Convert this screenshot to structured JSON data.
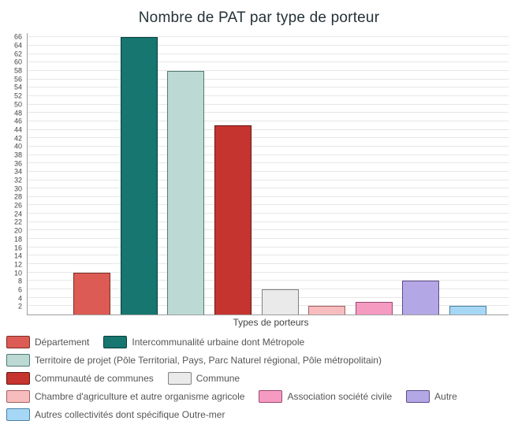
{
  "title": "Nombre de PAT par type de porteur",
  "chart_data": {
    "type": "bar",
    "title": "Nombre de PAT par type de porteur",
    "xlabel": "Types de porteurs",
    "ylabel": "",
    "ylim": [
      0,
      67
    ],
    "grid": true,
    "legend_position": "bottom",
    "yticks": [
      2,
      4,
      6,
      8,
      10,
      12,
      14,
      16,
      18,
      20,
      22,
      24,
      26,
      28,
      30,
      32,
      34,
      36,
      38,
      40,
      42,
      44,
      46,
      48,
      50,
      52,
      54,
      56,
      58,
      60,
      62,
      64,
      66
    ],
    "categories": [
      "Département",
      "Intercommunalité urbaine dont Métropole",
      "Territoire de projet (Pôle Territorial, Pays, Parc Naturel régional, Pôle métropolitain)",
      "Communauté de communes",
      "Commune",
      "Chambre d'agriculture et autre organisme agricole",
      "Association société civile",
      "Autre",
      "Autres collectivités dont spécifique Outre-mer"
    ],
    "values": [
      10,
      66,
      58,
      45,
      6,
      2,
      3,
      8,
      2
    ],
    "colors": [
      "#dc5b54",
      "#17766f",
      "#bcd9d3",
      "#c63430",
      "#eaeaea",
      "#f7bcbe",
      "#f59bc2",
      "#b4a7e5",
      "#a6d8f5"
    ],
    "border_colors": [
      "#7c2d26",
      "#063f3b",
      "#4f7a73",
      "#641310",
      "#808080",
      "#a35f62",
      "#97486f",
      "#5b4b8a",
      "#4a7fa6"
    ],
    "legend_rows": [
      [
        0,
        1
      ],
      [
        2
      ],
      [
        3,
        4
      ],
      [
        5,
        6,
        7
      ],
      [
        8
      ]
    ]
  }
}
